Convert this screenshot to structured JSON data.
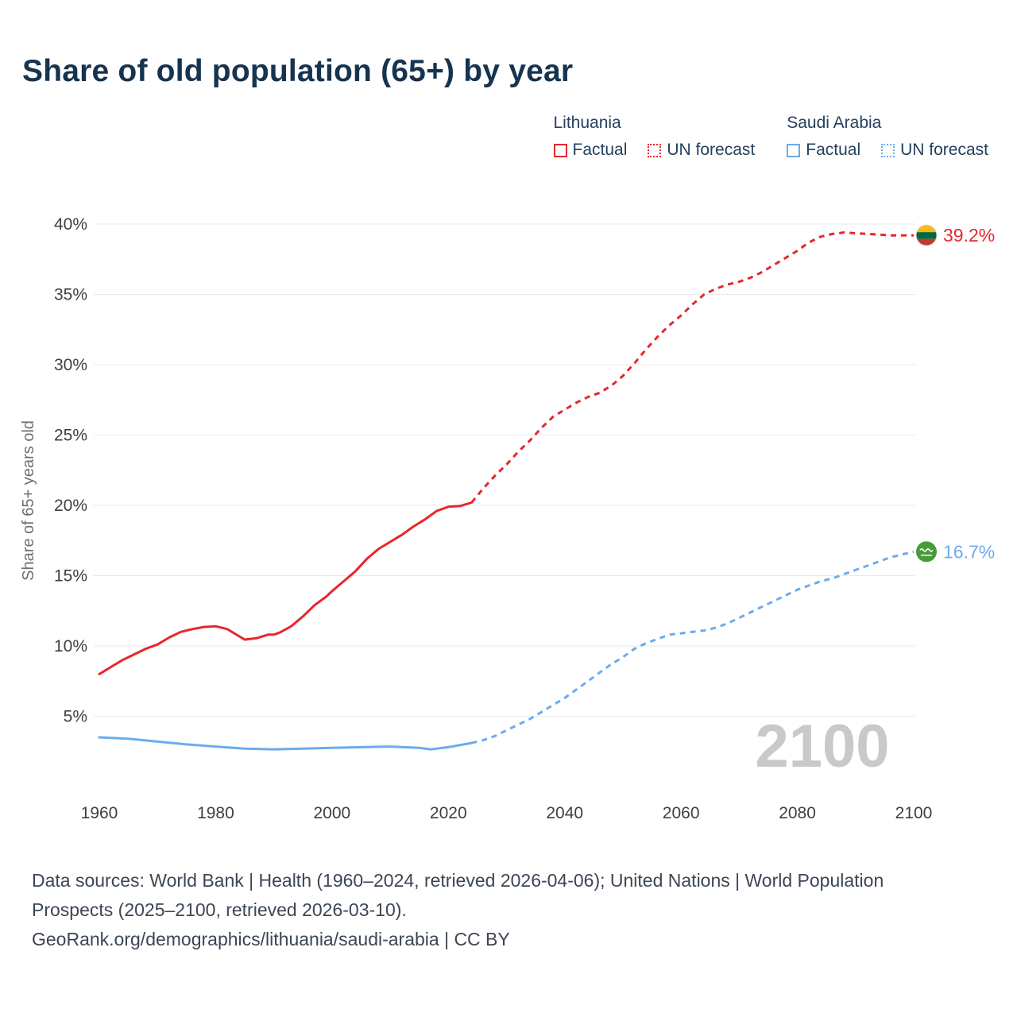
{
  "title": "Share of old population (65+) by year",
  "legend": {
    "groups": [
      {
        "name": "Lithuania",
        "color": "#e8262c",
        "items": [
          {
            "label": "Factual",
            "style": "solid"
          },
          {
            "label": "UN forecast",
            "style": "dotted"
          }
        ]
      },
      {
        "name": "Saudi Arabia",
        "color": "#6cabee",
        "items": [
          {
            "label": "Factual",
            "style": "solid"
          },
          {
            "label": "UN forecast",
            "style": "dotted"
          }
        ]
      }
    ]
  },
  "chart_data": {
    "type": "line",
    "title": "Share of old population (65+) by year",
    "xlabel": "",
    "ylabel": "Share of 65+ years old",
    "xlim": [
      1960,
      2100
    ],
    "ylim": [
      0,
      40
    ],
    "grid": "horizontal",
    "legend_position": "top-right",
    "watermark": "2100",
    "xticks": [
      {
        "v": 1960,
        "label": "1960"
      },
      {
        "v": 1980,
        "label": "1980"
      },
      {
        "v": 2000,
        "label": "2000"
      },
      {
        "v": 2020,
        "label": "2020"
      },
      {
        "v": 2040,
        "label": "2040"
      },
      {
        "v": 2060,
        "label": "2060"
      },
      {
        "v": 2080,
        "label": "2080"
      },
      {
        "v": 2100,
        "label": "2100"
      }
    ],
    "yticks": [
      {
        "v": 5,
        "label": "5%"
      },
      {
        "v": 10,
        "label": "10%"
      },
      {
        "v": 15,
        "label": "15%"
      },
      {
        "v": 20,
        "label": "20%"
      },
      {
        "v": 25,
        "label": "25%"
      },
      {
        "v": 30,
        "label": "30%"
      },
      {
        "v": 35,
        "label": "35%"
      },
      {
        "v": 40,
        "label": "40%"
      }
    ],
    "series": [
      {
        "name": "Lithuania",
        "color": "#e8262c",
        "end_label": "39.2%",
        "flag": "lithuania",
        "factual": [
          [
            1960,
            8.0
          ],
          [
            1962,
            8.5
          ],
          [
            1964,
            9.0
          ],
          [
            1966,
            9.4
          ],
          [
            1968,
            9.8
          ],
          [
            1970,
            10.1
          ],
          [
            1972,
            10.6
          ],
          [
            1974,
            11.0
          ],
          [
            1976,
            11.2
          ],
          [
            1978,
            11.35
          ],
          [
            1980,
            11.4
          ],
          [
            1982,
            11.2
          ],
          [
            1984,
            10.7
          ],
          [
            1985,
            10.45
          ],
          [
            1987,
            10.55
          ],
          [
            1989,
            10.8
          ],
          [
            1990,
            10.8
          ],
          [
            1991,
            10.95
          ],
          [
            1993,
            11.4
          ],
          [
            1995,
            12.1
          ],
          [
            1997,
            12.9
          ],
          [
            1999,
            13.5
          ],
          [
            2000,
            13.9
          ],
          [
            2002,
            14.6
          ],
          [
            2004,
            15.3
          ],
          [
            2006,
            16.2
          ],
          [
            2008,
            16.9
          ],
          [
            2010,
            17.4
          ],
          [
            2012,
            17.9
          ],
          [
            2014,
            18.5
          ],
          [
            2016,
            19.0
          ],
          [
            2018,
            19.6
          ],
          [
            2020,
            19.9
          ],
          [
            2022,
            19.95
          ],
          [
            2024,
            20.2
          ]
        ],
        "forecast": [
          [
            2024,
            20.2
          ],
          [
            2026,
            21.2
          ],
          [
            2028,
            22.1
          ],
          [
            2030,
            22.9
          ],
          [
            2032,
            23.8
          ],
          [
            2034,
            24.6
          ],
          [
            2036,
            25.5
          ],
          [
            2038,
            26.3
          ],
          [
            2040,
            26.8
          ],
          [
            2042,
            27.3
          ],
          [
            2044,
            27.7
          ],
          [
            2046,
            28.0
          ],
          [
            2048,
            28.5
          ],
          [
            2050,
            29.2
          ],
          [
            2052,
            30.1
          ],
          [
            2054,
            31.1
          ],
          [
            2056,
            32.0
          ],
          [
            2058,
            32.8
          ],
          [
            2060,
            33.5
          ],
          [
            2062,
            34.3
          ],
          [
            2064,
            35.0
          ],
          [
            2066,
            35.4
          ],
          [
            2068,
            35.7
          ],
          [
            2070,
            35.9
          ],
          [
            2072,
            36.2
          ],
          [
            2074,
            36.6
          ],
          [
            2076,
            37.1
          ],
          [
            2078,
            37.6
          ],
          [
            2080,
            38.1
          ],
          [
            2082,
            38.7
          ],
          [
            2084,
            39.1
          ],
          [
            2086,
            39.3
          ],
          [
            2088,
            39.4
          ],
          [
            2090,
            39.35
          ],
          [
            2092,
            39.3
          ],
          [
            2094,
            39.25
          ],
          [
            2096,
            39.2
          ],
          [
            2098,
            39.2
          ],
          [
            2100,
            39.2
          ]
        ]
      },
      {
        "name": "Saudi Arabia",
        "color": "#6cabee",
        "end_label": "16.7%",
        "flag": "saudi-arabia",
        "factual": [
          [
            1960,
            3.5
          ],
          [
            1965,
            3.4
          ],
          [
            1970,
            3.2
          ],
          [
            1975,
            3.0
          ],
          [
            1980,
            2.85
          ],
          [
            1985,
            2.7
          ],
          [
            1990,
            2.65
          ],
          [
            1995,
            2.7
          ],
          [
            2000,
            2.75
          ],
          [
            2005,
            2.8
          ],
          [
            2010,
            2.85
          ],
          [
            2015,
            2.75
          ],
          [
            2017,
            2.65
          ],
          [
            2020,
            2.8
          ],
          [
            2024,
            3.1
          ]
        ],
        "forecast": [
          [
            2024,
            3.1
          ],
          [
            2026,
            3.3
          ],
          [
            2028,
            3.6
          ],
          [
            2030,
            4.0
          ],
          [
            2032,
            4.4
          ],
          [
            2034,
            4.8
          ],
          [
            2036,
            5.3
          ],
          [
            2038,
            5.8
          ],
          [
            2040,
            6.3
          ],
          [
            2042,
            6.9
          ],
          [
            2044,
            7.5
          ],
          [
            2046,
            8.1
          ],
          [
            2048,
            8.7
          ],
          [
            2050,
            9.2
          ],
          [
            2052,
            9.8
          ],
          [
            2054,
            10.2
          ],
          [
            2056,
            10.5
          ],
          [
            2058,
            10.8
          ],
          [
            2060,
            10.9
          ],
          [
            2062,
            11.0
          ],
          [
            2064,
            11.1
          ],
          [
            2066,
            11.3
          ],
          [
            2068,
            11.6
          ],
          [
            2070,
            12.0
          ],
          [
            2072,
            12.4
          ],
          [
            2074,
            12.8
          ],
          [
            2076,
            13.2
          ],
          [
            2078,
            13.6
          ],
          [
            2080,
            14.0
          ],
          [
            2082,
            14.3
          ],
          [
            2084,
            14.6
          ],
          [
            2086,
            14.8
          ],
          [
            2088,
            15.1
          ],
          [
            2090,
            15.4
          ],
          [
            2092,
            15.7
          ],
          [
            2094,
            16.0
          ],
          [
            2096,
            16.3
          ],
          [
            2098,
            16.5
          ],
          [
            2100,
            16.7
          ]
        ]
      }
    ]
  },
  "footer": {
    "sources": "Data sources: World Bank | Health (1960–2024, retrieved 2026-04-06); United Nations | World Population Prospects (2025–2100, retrieved 2026-03-10).",
    "attribution": "GeoRank.org/demographics/lithuania/saudi-arabia | CC BY"
  }
}
